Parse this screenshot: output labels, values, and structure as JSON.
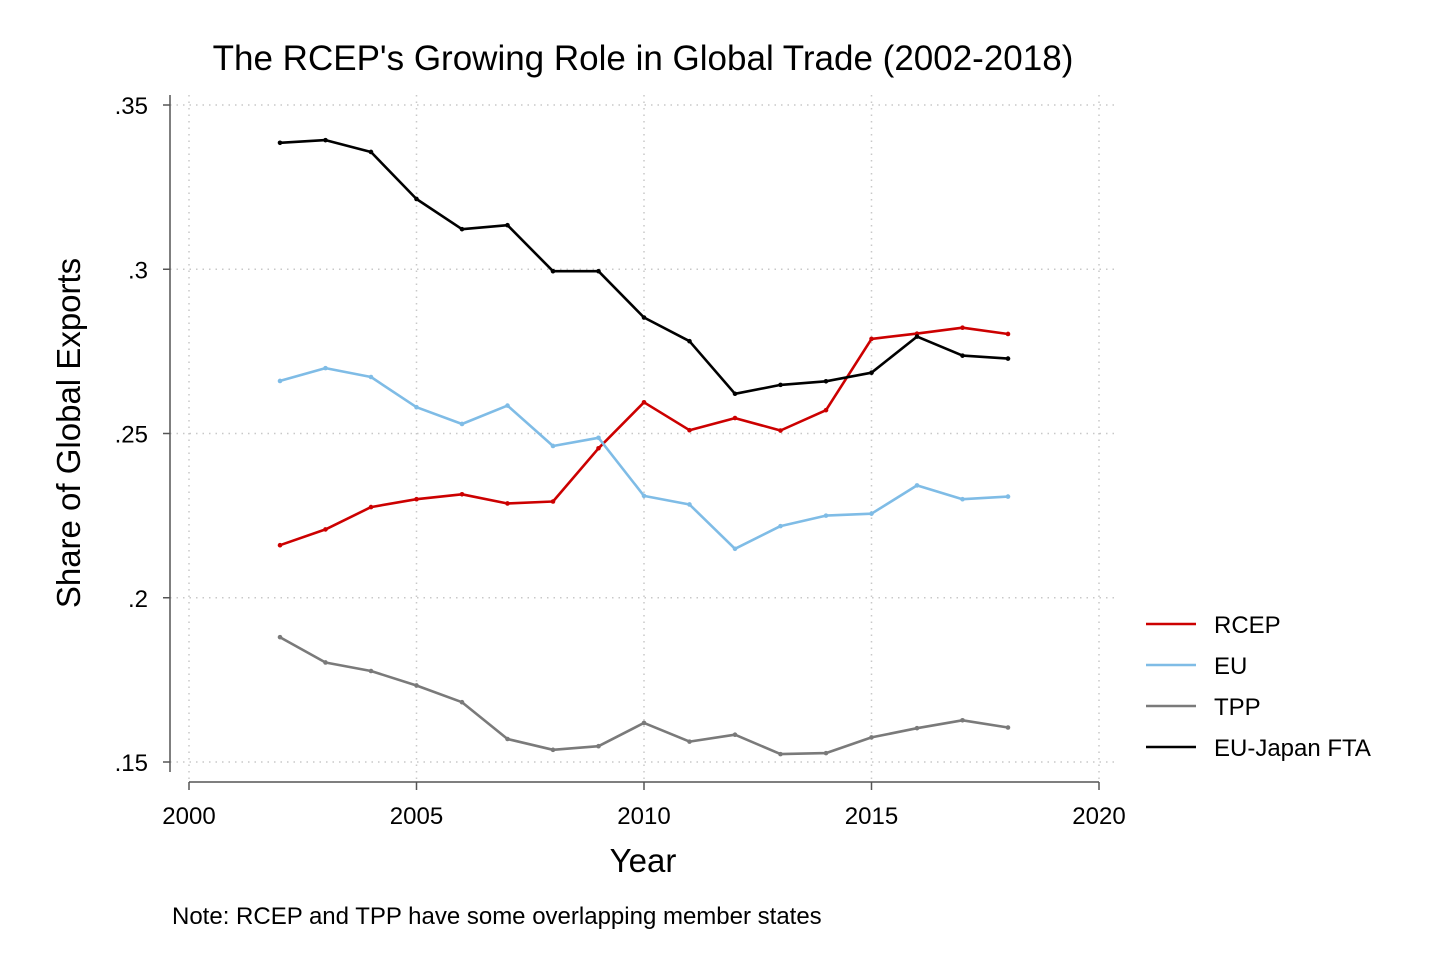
{
  "chart_data": {
    "type": "line",
    "title": "The RCEP's Growing Role in Global Trade (2002-2018)",
    "xlabel": "Year",
    "ylabel": "Share of Global Exports",
    "xlim": [
      2000,
      2020
    ],
    "ylim": [
      0.15,
      0.35
    ],
    "xticks": [
      2000,
      2005,
      2010,
      2015,
      2020
    ],
    "xtick_labels": [
      "2000",
      "2005",
      "2010",
      "2015",
      "2020"
    ],
    "yticks": [
      0.15,
      0.2,
      0.25,
      0.3,
      0.35
    ],
    "ytick_labels": [
      ".15",
      ".2",
      ".25",
      ".3",
      ".35"
    ],
    "grid": true,
    "legend_position": "right",
    "note": "Note: RCEP and TPP have some overlapping member states",
    "x": [
      2002,
      2003,
      2004,
      2005,
      2006,
      2007,
      2008,
      2009,
      2010,
      2011,
      2012,
      2013,
      2014,
      2015,
      2016,
      2017,
      2018
    ],
    "series": [
      {
        "name": "RCEP",
        "color": "#cc0000",
        "values": [
          0.216,
          0.2208,
          0.2276,
          0.23,
          0.2315,
          0.2287,
          0.2293,
          0.2455,
          0.2595,
          0.251,
          0.2547,
          0.2509,
          0.2571,
          0.2788,
          0.2804,
          0.2822,
          0.2803
        ]
      },
      {
        "name": "EU",
        "color": "#7fbce6",
        "values": [
          0.266,
          0.2699,
          0.2672,
          0.258,
          0.2529,
          0.2585,
          0.2462,
          0.2487,
          0.231,
          0.2284,
          0.2149,
          0.2218,
          0.225,
          0.2256,
          0.2342,
          0.23,
          0.2308
        ]
      },
      {
        "name": "TPP",
        "color": "#7a7a7a",
        "values": [
          0.188,
          0.1803,
          0.1777,
          0.1733,
          0.1682,
          0.157,
          0.1537,
          0.1548,
          0.1619,
          0.1562,
          0.1583,
          0.1524,
          0.1527,
          0.1575,
          0.1603,
          0.1627,
          0.1605
        ]
      },
      {
        "name": "EU-Japan FTA",
        "color": "#000000",
        "values": [
          0.3385,
          0.3393,
          0.3357,
          0.3214,
          0.3122,
          0.3134,
          0.2994,
          0.2994,
          0.2853,
          0.2781,
          0.2621,
          0.2648,
          0.2659,
          0.2685,
          0.2795,
          0.2737,
          0.2728
        ]
      }
    ]
  }
}
